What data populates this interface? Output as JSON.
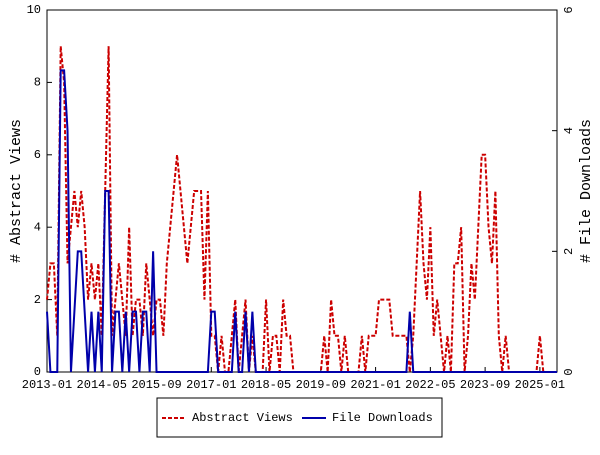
{
  "chart_data": {
    "type": "line",
    "x": [
      "2013-01",
      "2013-02",
      "2013-03",
      "2013-04",
      "2013-05",
      "2013-06",
      "2013-07",
      "2013-08",
      "2013-09",
      "2013-10",
      "2013-11",
      "2013-12",
      "2014-01",
      "2014-02",
      "2014-03",
      "2014-04",
      "2014-05",
      "2014-06",
      "2014-07",
      "2014-08",
      "2014-09",
      "2014-10",
      "2014-11",
      "2014-12",
      "2015-01",
      "2015-02",
      "2015-03",
      "2015-04",
      "2015-05",
      "2015-06",
      "2015-07",
      "2015-08",
      "2015-09",
      "2015-10",
      "2015-11",
      "2015-12",
      "2016-01",
      "2016-02",
      "2016-03",
      "2016-04",
      "2016-05",
      "2016-06",
      "2016-07",
      "2016-08",
      "2016-09",
      "2016-10",
      "2016-11",
      "2016-12",
      "2017-01",
      "2017-02",
      "2017-03",
      "2017-04",
      "2017-05",
      "2017-06",
      "2017-07",
      "2017-08",
      "2017-09",
      "2017-10",
      "2017-11",
      "2017-12",
      "2018-01",
      "2018-02",
      "2018-03",
      "2018-04",
      "2018-05",
      "2018-06",
      "2018-07",
      "2018-08",
      "2018-09",
      "2018-10",
      "2018-11",
      "2018-12",
      "2019-01",
      "2019-02",
      "2019-03",
      "2019-04",
      "2019-05",
      "2019-06",
      "2019-07",
      "2019-08",
      "2019-09",
      "2019-10",
      "2019-11",
      "2019-12",
      "2020-01",
      "2020-02",
      "2020-03",
      "2020-04",
      "2020-05",
      "2020-06",
      "2020-07",
      "2020-08",
      "2020-09",
      "2020-10",
      "2020-11",
      "2020-12",
      "2021-01",
      "2021-02",
      "2021-03",
      "2021-04",
      "2021-05",
      "2021-06",
      "2021-07",
      "2021-08",
      "2021-09",
      "2021-10",
      "2021-11",
      "2021-12",
      "2022-01",
      "2022-02",
      "2022-03",
      "2022-04",
      "2022-05",
      "2022-06",
      "2022-07",
      "2022-08",
      "2022-09",
      "2022-10",
      "2022-11",
      "2022-12",
      "2023-01",
      "2023-02",
      "2023-03",
      "2023-04",
      "2023-05",
      "2023-06",
      "2023-07",
      "2023-08",
      "2023-09",
      "2023-10",
      "2023-11",
      "2023-12",
      "2024-01",
      "2024-02",
      "2024-03",
      "2024-04",
      "2024-05",
      "2024-06",
      "2024-07",
      "2024-08",
      "2024-09",
      "2024-10",
      "2024-11",
      "2024-12",
      "2025-01",
      "2025-02",
      "2025-03",
      "2025-04",
      "2025-05",
      "2025-06"
    ],
    "series": [
      {
        "name": "Abstract Views",
        "color": "#cc0000",
        "dashed": true,
        "values": [
          2,
          3,
          3,
          1,
          9,
          8,
          3,
          4,
          5,
          4,
          5,
          4,
          2,
          3,
          2,
          3,
          1,
          5,
          9,
          1,
          2,
          3,
          2,
          1,
          4,
          1,
          2,
          2,
          1,
          3,
          2,
          1,
          2,
          2,
          1,
          3,
          4,
          5,
          6,
          5,
          4,
          3,
          4,
          5,
          5,
          5,
          2,
          5,
          1,
          1,
          0,
          1,
          0,
          0,
          1,
          2,
          0,
          1,
          2,
          0,
          1,
          0,
          0,
          0,
          2,
          0,
          1,
          1,
          0,
          2,
          1,
          1,
          0,
          0,
          0,
          0,
          0,
          0,
          0,
          0,
          0,
          1,
          0,
          2,
          1,
          1,
          0,
          1,
          0,
          0,
          0,
          0,
          1,
          0,
          1,
          1,
          1,
          2,
          2,
          2,
          2,
          1,
          1,
          1,
          1,
          1,
          0,
          1,
          3,
          5,
          3,
          2,
          4,
          1,
          2,
          1,
          0,
          1,
          0,
          3,
          3,
          4,
          0,
          1,
          3,
          2,
          4,
          6,
          6,
          4,
          3,
          5,
          1,
          0,
          1,
          0,
          0,
          0,
          0,
          0,
          0,
          0,
          0,
          0,
          1,
          0,
          0,
          0,
          0,
          0
        ]
      },
      {
        "name": "File Downloads",
        "color": "#0000aa",
        "axis": "y2",
        "values": [
          1,
          0,
          0,
          0,
          5,
          5,
          4,
          0,
          1,
          2,
          2,
          1,
          0,
          1,
          0,
          1,
          0,
          3,
          3,
          0,
          1,
          1,
          0,
          1,
          0,
          1,
          1,
          0,
          1,
          1,
          0,
          2,
          0,
          0,
          0,
          0,
          0,
          0,
          0,
          0,
          0,
          0,
          0,
          0,
          0,
          0,
          0,
          0,
          1,
          1,
          0,
          0,
          0,
          0,
          0,
          1,
          0,
          0,
          1,
          0,
          1,
          0,
          0,
          0,
          0,
          0,
          0,
          0,
          0,
          0,
          0,
          0,
          0,
          0,
          0,
          0,
          0,
          0,
          0,
          0,
          0,
          0,
          0,
          0,
          0,
          0,
          0,
          0,
          0,
          0,
          0,
          0,
          0,
          0,
          0,
          0,
          0,
          0,
          0,
          0,
          0,
          0,
          0,
          0,
          0,
          0,
          1,
          0,
          0,
          0,
          0,
          0,
          0,
          0,
          0,
          0,
          0,
          0,
          0,
          0,
          0,
          0,
          0,
          0,
          0,
          0,
          0,
          0,
          0,
          0,
          0,
          0,
          0,
          0,
          0,
          0,
          0,
          0,
          0,
          0,
          0,
          0,
          0,
          0,
          0,
          0,
          0,
          0,
          0,
          0
        ]
      }
    ],
    "xlim": [
      "2013-01",
      "2025-06"
    ],
    "xticks": [
      "2013-01",
      "2014-05",
      "2015-09",
      "2017-01",
      "2018-05",
      "2019-09",
      "2021-01",
      "2022-05",
      "2023-09",
      "2025-01"
    ],
    "ylabel": "# Abstract Views",
    "ylim": [
      0,
      10
    ],
    "yticks": [
      0,
      2,
      4,
      6,
      8,
      10
    ],
    "y2label": "# File Downloads",
    "y2lim": [
      0,
      6
    ],
    "y2ticks": [
      0,
      2,
      4,
      6
    ],
    "legend": "bottom"
  }
}
